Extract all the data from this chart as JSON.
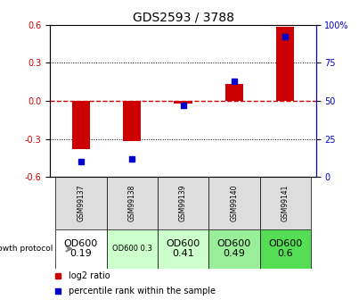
{
  "title": "GDS2593 / 3788",
  "samples": [
    "GSM99137",
    "GSM99138",
    "GSM99139",
    "GSM99140",
    "GSM99141"
  ],
  "log2_ratio": [
    -0.38,
    -0.32,
    -0.02,
    0.13,
    0.58
  ],
  "percentile_rank": [
    10,
    12,
    47,
    63,
    92
  ],
  "ylim_left": [
    -0.6,
    0.6
  ],
  "ylim_right": [
    0,
    100
  ],
  "yticks_left": [
    -0.6,
    -0.3,
    0.0,
    0.3,
    0.6
  ],
  "yticks_right": [
    0,
    25,
    50,
    75,
    100
  ],
  "bar_color": "#cc0000",
  "dot_color": "#0000cc",
  "zero_line_color": "#cc0000",
  "grid_color": "#000000",
  "growth_protocol": [
    "OD600\n0.19",
    "OD600 0.3",
    "OD600\n0.41",
    "OD600\n0.49",
    "OD600\n0.6"
  ],
  "protocol_colors": [
    "#ffffff",
    "#ccffcc",
    "#ccffcc",
    "#99ee99",
    "#55dd55"
  ],
  "protocol_fontsize": [
    8,
    6,
    8,
    8,
    8
  ],
  "xlabel_area_color": "#cccccc",
  "legend_red": "log2 ratio",
  "legend_blue": "percentile rank within the sample"
}
